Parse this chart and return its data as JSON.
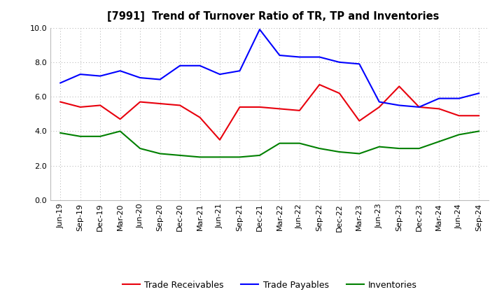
{
  "title": "[7991]  Trend of Turnover Ratio of TR, TP and Inventories",
  "x_labels": [
    "Jun-19",
    "Sep-19",
    "Dec-19",
    "Mar-20",
    "Jun-20",
    "Sep-20",
    "Dec-20",
    "Mar-21",
    "Jun-21",
    "Sep-21",
    "Dec-21",
    "Mar-22",
    "Jun-22",
    "Sep-22",
    "Dec-22",
    "Mar-23",
    "Jun-23",
    "Sep-23",
    "Dec-23",
    "Mar-24",
    "Jun-24",
    "Sep-24"
  ],
  "trade_receivables": [
    5.7,
    5.4,
    5.5,
    4.7,
    5.7,
    5.6,
    5.5,
    4.8,
    3.5,
    5.4,
    5.4,
    5.3,
    5.2,
    6.7,
    6.2,
    4.6,
    5.4,
    6.6,
    5.4,
    5.3,
    4.9,
    4.9
  ],
  "trade_payables": [
    6.8,
    7.3,
    7.2,
    7.5,
    7.1,
    7.0,
    7.8,
    7.8,
    7.3,
    7.5,
    9.9,
    8.4,
    8.3,
    8.3,
    8.0,
    7.9,
    5.7,
    5.5,
    5.4,
    5.9,
    5.9,
    6.2
  ],
  "inventories": [
    3.9,
    3.7,
    3.7,
    4.0,
    3.0,
    2.7,
    2.6,
    2.5,
    2.5,
    2.5,
    2.6,
    3.3,
    3.3,
    3.0,
    2.8,
    2.7,
    3.1,
    3.0,
    3.0,
    3.4,
    3.8,
    4.0
  ],
  "ylim": [
    0.0,
    10.0
  ],
  "yticks": [
    0.0,
    2.0,
    4.0,
    6.0,
    8.0,
    10.0
  ],
  "color_tr": "#e8000d",
  "color_tp": "#0000ff",
  "color_inv": "#008000",
  "legend_labels": [
    "Trade Receivables",
    "Trade Payables",
    "Inventories"
  ],
  "background_color": "#ffffff",
  "plot_bg_color": "#ffffff"
}
